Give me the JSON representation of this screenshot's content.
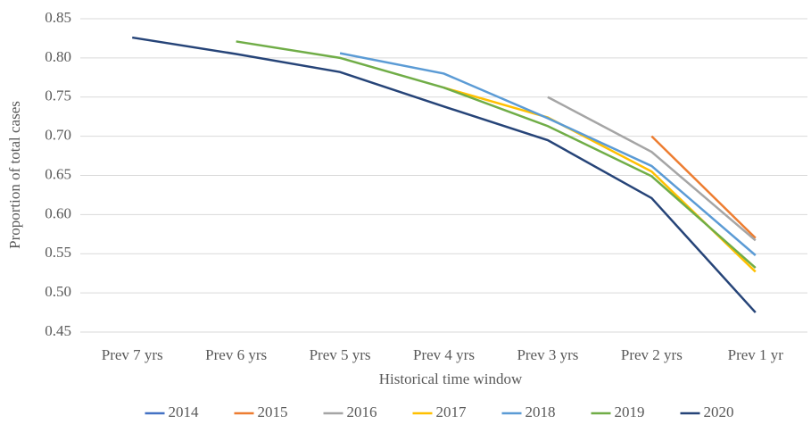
{
  "chart_data": {
    "type": "line",
    "xlabel": "Historical time window",
    "ylabel": "Proportion of total cases",
    "categories": [
      "Prev 7 yrs",
      "Prev 6 yrs",
      "Prev 5 yrs",
      "Prev 4 yrs",
      "Prev 3 yrs",
      "Prev 2 yrs",
      "Prev 1 yr"
    ],
    "series": [
      {
        "name": "2014",
        "color": "#4472c4",
        "values": [
          null,
          null,
          null,
          null,
          null,
          null,
          null
        ]
      },
      {
        "name": "2015",
        "color": "#ed7d31",
        "values": [
          null,
          null,
          null,
          null,
          null,
          0.7,
          0.57
        ]
      },
      {
        "name": "2016",
        "color": "#a5a5a5",
        "values": [
          null,
          null,
          null,
          null,
          0.75,
          0.68,
          0.567
        ]
      },
      {
        "name": "2017",
        "color": "#ffc000",
        "values": [
          null,
          null,
          null,
          0.762,
          0.724,
          0.655,
          0.527
        ]
      },
      {
        "name": "2018",
        "color": "#5b9bd5",
        "values": [
          null,
          null,
          0.806,
          0.78,
          0.723,
          0.662,
          0.548
        ]
      },
      {
        "name": "2019",
        "color": "#70ad47",
        "values": [
          null,
          0.821,
          0.8,
          0.762,
          0.713,
          0.649,
          0.532
        ]
      },
      {
        "name": "2020",
        "color": "#264478",
        "values": [
          0.826,
          0.805,
          0.782,
          0.738,
          0.695,
          0.621,
          0.475
        ]
      }
    ],
    "ylim": [
      0.45,
      0.85
    ],
    "yticks": [
      0.45,
      {
        "value": 0.5,
        "label": "0.50"
      },
      0.55,
      {
        "value": 0.6,
        "label": "0.60"
      },
      0.65,
      {
        "value": 0.7,
        "label": "0.70"
      },
      0.75,
      {
        "value": 0.8,
        "label": "0.80"
      },
      0.85
    ],
    "grid": true,
    "legend": "bottom"
  }
}
